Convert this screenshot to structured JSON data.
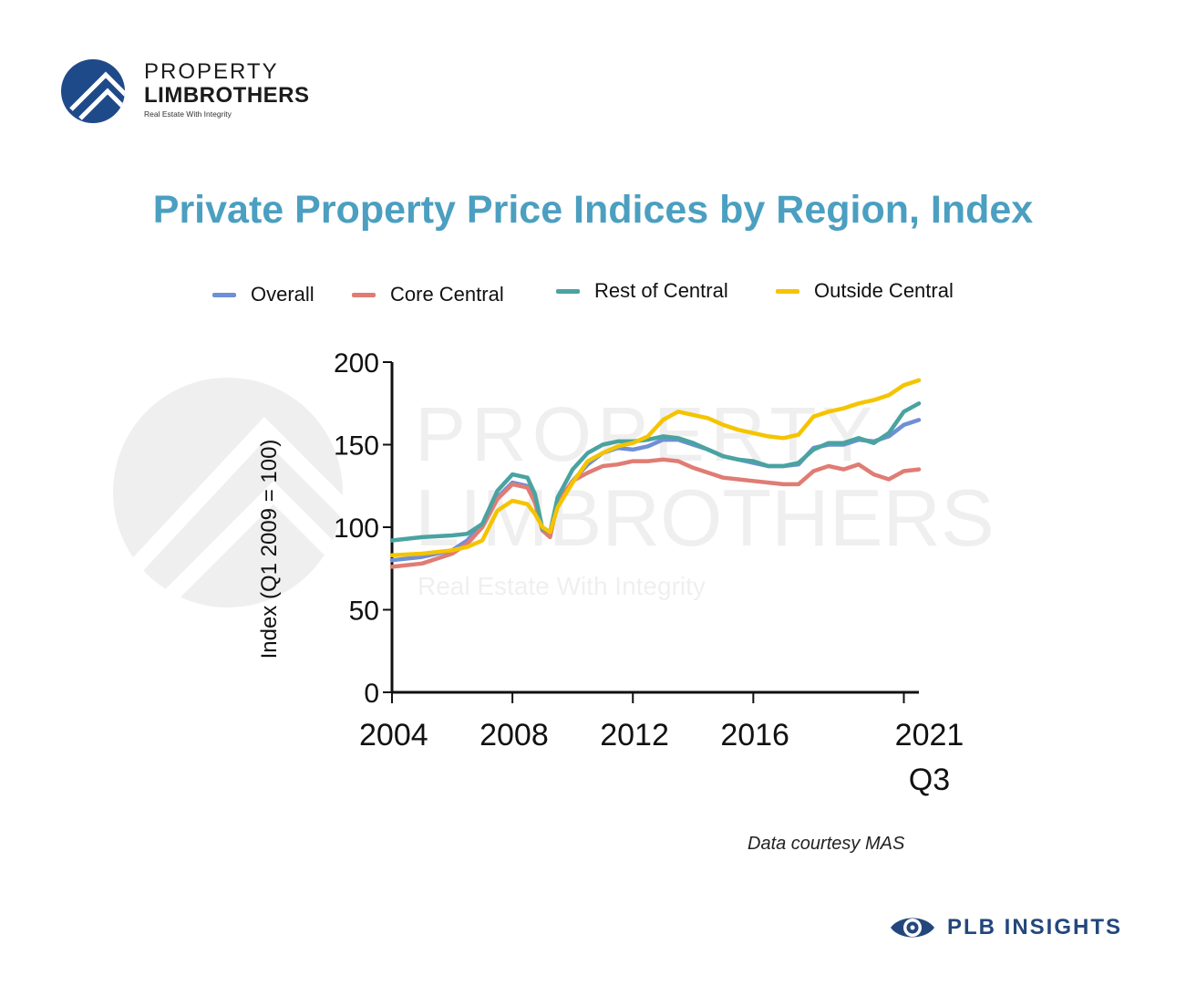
{
  "logo": {
    "line1": "PROPERTY",
    "line2": "LIMBROTHERS",
    "tagline": "Real Estate With Integrity"
  },
  "watermark": {
    "line1": "PROPERTY",
    "line2": "LIMBROTHERS",
    "tagline": "Real Estate With Integrity"
  },
  "footer": {
    "note": "Data courtesy MAS",
    "brand": "PLB INSIGHTS"
  },
  "colors": {
    "title": "#4b9fc0",
    "overall": "#6f8fd6",
    "core_central": "#e07c74",
    "rest_of_central": "#4aa3a0",
    "outside_central": "#f5c400",
    "brand": "#23477d"
  },
  "chart_data": {
    "type": "line",
    "title": "Private Property Price Indices by Region, Index",
    "xlabel": "",
    "ylabel": "Index (Q1 2009 = 100)",
    "ylim": [
      0,
      200
    ],
    "yticks": [
      0,
      50,
      100,
      150,
      200
    ],
    "xlim": [
      2004,
      2021.5
    ],
    "xticks": [
      {
        "value": 2004,
        "label": "2004"
      },
      {
        "value": 2008,
        "label": "2008"
      },
      {
        "value": 2012,
        "label": "2012"
      },
      {
        "value": 2016,
        "label": "2016"
      },
      {
        "value": 2021,
        "label": "2021",
        "sublabel": "Q3"
      }
    ],
    "legend_position": "top",
    "grid": false,
    "series": [
      {
        "name": "Overall",
        "color": "#6f8fd6",
        "x": [
          2004,
          2005,
          2006,
          2006.5,
          2007,
          2007.5,
          2008,
          2008.5,
          2008.75,
          2009,
          2009.25,
          2009.5,
          2010,
          2010.5,
          2011,
          2011.5,
          2012,
          2012.5,
          2013,
          2013.5,
          2014,
          2014.5,
          2015,
          2015.5,
          2016,
          2016.5,
          2017,
          2017.5,
          2018,
          2018.5,
          2019,
          2019.5,
          2020,
          2020.5,
          2021,
          2021.5
        ],
        "y": [
          80,
          82,
          86,
          92,
          102,
          118,
          127,
          125,
          115,
          98,
          96,
          115,
          128,
          138,
          145,
          148,
          147,
          149,
          153,
          153,
          150,
          147,
          143,
          141,
          139,
          137,
          137,
          138,
          148,
          150,
          150,
          153,
          152,
          155,
          162,
          165
        ]
      },
      {
        "name": "Core Central",
        "color": "#e07c74",
        "x": [
          2004,
          2005,
          2006,
          2006.5,
          2007,
          2007.5,
          2008,
          2008.5,
          2008.75,
          2009,
          2009.25,
          2009.5,
          2010,
          2010.5,
          2011,
          2011.5,
          2012,
          2012.5,
          2013,
          2013.5,
          2014,
          2014.5,
          2015,
          2015.5,
          2016,
          2016.5,
          2017,
          2017.5,
          2018,
          2018.5,
          2019,
          2019.5,
          2020,
          2020.5,
          2021,
          2021.5
        ],
        "y": [
          76,
          78,
          84,
          90,
          100,
          117,
          126,
          124,
          115,
          98,
          94,
          115,
          128,
          133,
          137,
          138,
          140,
          140,
          141,
          140,
          136,
          133,
          130,
          129,
          128,
          127,
          126,
          126,
          134,
          137,
          135,
          138,
          132,
          129,
          134,
          135
        ]
      },
      {
        "name": "Rest of Central",
        "color": "#4aa3a0",
        "x": [
          2004,
          2005,
          2006,
          2006.5,
          2007,
          2007.5,
          2008,
          2008.5,
          2008.75,
          2009,
          2009.25,
          2009.5,
          2010,
          2010.5,
          2011,
          2011.5,
          2012,
          2012.5,
          2013,
          2013.5,
          2014,
          2014.5,
          2015,
          2015.5,
          2016,
          2016.5,
          2017,
          2017.5,
          2018,
          2018.5,
          2019,
          2019.5,
          2020,
          2020.5,
          2021,
          2021.5
        ],
        "y": [
          92,
          94,
          95,
          96,
          102,
          122,
          132,
          130,
          120,
          99,
          97,
          118,
          135,
          145,
          150,
          152,
          152,
          153,
          155,
          154,
          151,
          147,
          143,
          141,
          140,
          137,
          137,
          139,
          147,
          151,
          151,
          154,
          151,
          157,
          170,
          175
        ]
      },
      {
        "name": "Outside Central",
        "color": "#f5c400",
        "x": [
          2004,
          2005,
          2006,
          2006.5,
          2007,
          2007.5,
          2008,
          2008.5,
          2008.75,
          2009,
          2009.25,
          2009.5,
          2010,
          2010.5,
          2011,
          2011.5,
          2012,
          2012.5,
          2013,
          2013.5,
          2014,
          2014.5,
          2015,
          2015.5,
          2016,
          2016.5,
          2017,
          2017.5,
          2018,
          2018.5,
          2019,
          2019.5,
          2020,
          2020.5,
          2021,
          2021.5
        ],
        "y": [
          83,
          84,
          86,
          88,
          92,
          110,
          116,
          114,
          108,
          100,
          97,
          112,
          127,
          140,
          145,
          149,
          151,
          155,
          165,
          170,
          168,
          166,
          162,
          159,
          157,
          155,
          154,
          156,
          167,
          170,
          172,
          175,
          177,
          180,
          186,
          189
        ]
      }
    ]
  }
}
